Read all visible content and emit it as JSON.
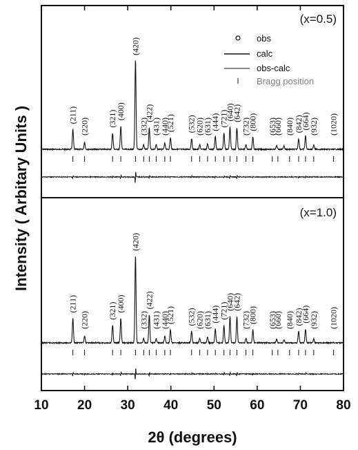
{
  "chart_data": {
    "type": "line",
    "xlabel": "2θ (degrees)",
    "ylabel": "Intensity ( Arbitary Units )",
    "xlim": [
      10,
      80
    ],
    "xticks": [
      "10",
      "20",
      "30",
      "40",
      "50",
      "60",
      "70",
      "80"
    ],
    "legend": {
      "placement": "top-right",
      "entries": [
        "obs",
        "calc",
        "obs-calc",
        "Bragg position"
      ]
    },
    "panels": [
      {
        "label": "(x=0.5)",
        "series": [
          {
            "name": "obs",
            "x": [
              17.3,
              20.0,
              26.5,
              28.4,
              31.8,
              33.7,
              35.0,
              36.6,
              38.6,
              39.9,
              44.8,
              46.7,
              48.5,
              50.3,
              52.3,
              53.7,
              55.3,
              57.4,
              59.0,
              64.5,
              66.2,
              69.6,
              71.2,
              73.1
            ],
            "y": [
              0.22,
              0.08,
              0.18,
              0.26,
              1.0,
              0.05,
              0.24,
              0.05,
              0.07,
              0.13,
              0.12,
              0.05,
              0.06,
              0.14,
              0.18,
              0.25,
              0.24,
              0.05,
              0.14,
              0.04,
              0.04,
              0.12,
              0.15,
              0.05
            ]
          }
        ],
        "peaks": [
          {
            "hkl": "(211)",
            "x": 17.3
          },
          {
            "hkl": "(220)",
            "x": 20.0
          },
          {
            "hkl": "(321)",
            "x": 26.5
          },
          {
            "hkl": "(400)",
            "x": 28.4
          },
          {
            "hkl": "(420)",
            "x": 31.8
          },
          {
            "hkl": "(332)",
            "x": 33.7
          },
          {
            "hkl": "(422)",
            "x": 35.0
          },
          {
            "hkl": "(431)",
            "x": 36.6
          },
          {
            "hkl": "(440)",
            "x": 38.6
          },
          {
            "hkl": "(521)",
            "x": 39.9
          },
          {
            "hkl": "(532)",
            "x": 44.8
          },
          {
            "hkl": "(620)",
            "x": 46.7
          },
          {
            "hkl": "(631)",
            "x": 48.5
          },
          {
            "hkl": "(444)",
            "x": 50.3
          },
          {
            "hkl": "(721)",
            "x": 52.3
          },
          {
            "hkl": "(640)",
            "x": 53.7
          },
          {
            "hkl": "(642)",
            "x": 55.3
          },
          {
            "hkl": "(732)",
            "x": 57.4
          },
          {
            "hkl": "(800)",
            "x": 59.0
          },
          {
            "hkl": "(653)",
            "x": 63.5
          },
          {
            "hkl": "(660)",
            "x": 64.8
          },
          {
            "hkl": "(840)",
            "x": 67.5
          },
          {
            "hkl": "(842)",
            "x": 69.6
          },
          {
            "hkl": "(664)",
            "x": 71.2
          },
          {
            "hkl": "(932)",
            "x": 73.1
          },
          {
            "hkl": "(1020)",
            "x": 77.7
          }
        ]
      },
      {
        "label": "(x=1.0)",
        "series": [
          {
            "name": "obs",
            "x": [
              17.3,
              20.0,
              26.5,
              28.4,
              31.8,
              33.7,
              35.0,
              36.6,
              38.6,
              39.9,
              44.8,
              46.7,
              48.5,
              50.3,
              52.3,
              53.7,
              55.3,
              57.4,
              59.0,
              64.5,
              66.2,
              69.6,
              71.2,
              73.1
            ],
            "y": [
              0.28,
              0.08,
              0.2,
              0.28,
              1.0,
              0.05,
              0.32,
              0.05,
              0.08,
              0.15,
              0.13,
              0.05,
              0.07,
              0.16,
              0.2,
              0.3,
              0.3,
              0.05,
              0.15,
              0.04,
              0.04,
              0.13,
              0.16,
              0.05
            ]
          }
        ],
        "peaks": [
          {
            "hkl": "(211)",
            "x": 17.3
          },
          {
            "hkl": "(220)",
            "x": 20.0
          },
          {
            "hkl": "(321)",
            "x": 26.5
          },
          {
            "hkl": "(400)",
            "x": 28.4
          },
          {
            "hkl": "(420)",
            "x": 31.8
          },
          {
            "hkl": "(332)",
            "x": 33.7
          },
          {
            "hkl": "(422)",
            "x": 35.0
          },
          {
            "hkl": "(431)",
            "x": 36.6
          },
          {
            "hkl": "(440)",
            "x": 38.6
          },
          {
            "hkl": "(521)",
            "x": 39.9
          },
          {
            "hkl": "(532)",
            "x": 44.8
          },
          {
            "hkl": "(620)",
            "x": 46.7
          },
          {
            "hkl": "(631)",
            "x": 48.5
          },
          {
            "hkl": "(444)",
            "x": 50.3
          },
          {
            "hkl": "(721)",
            "x": 52.3
          },
          {
            "hkl": "(640)",
            "x": 53.7
          },
          {
            "hkl": "(642)",
            "x": 55.3
          },
          {
            "hkl": "(732)",
            "x": 57.4
          },
          {
            "hkl": "(800)",
            "x": 59.0
          },
          {
            "hkl": "(653)",
            "x": 63.5
          },
          {
            "hkl": "(660)",
            "x": 64.8
          },
          {
            "hkl": "(840)",
            "x": 67.5
          },
          {
            "hkl": "(842)",
            "x": 69.6
          },
          {
            "hkl": "(664)",
            "x": 71.2
          },
          {
            "hkl": "(932)",
            "x": 73.1
          },
          {
            "hkl": "(1020)",
            "x": 77.7
          }
        ]
      }
    ]
  }
}
